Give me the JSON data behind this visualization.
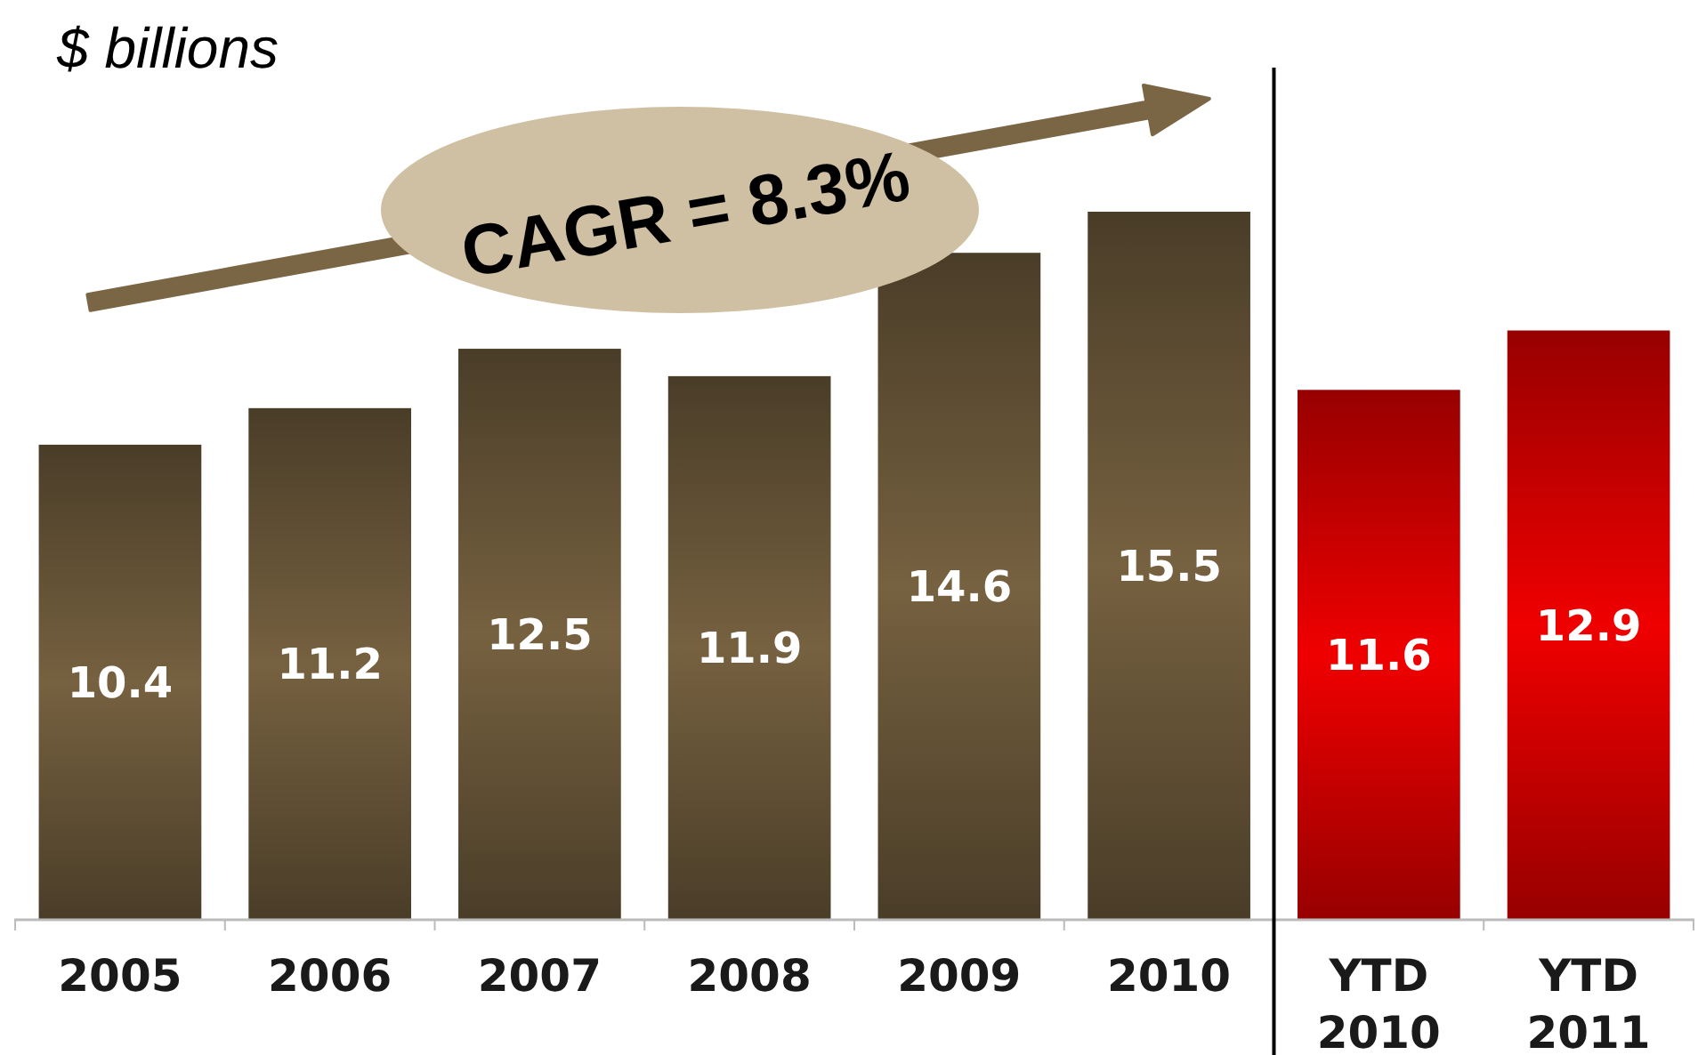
{
  "chart_data": {
    "type": "bar",
    "ylabel": "$ billions",
    "categories": [
      "2005",
      "2006",
      "2007",
      "2008",
      "2009",
      "2010",
      "YTD 2010",
      "YTD 2011"
    ],
    "values": [
      10.4,
      11.2,
      12.5,
      11.9,
      14.6,
      15.5,
      11.6,
      12.9
    ],
    "colors": [
      "#766140",
      "#766140",
      "#766140",
      "#766140",
      "#766140",
      "#766140",
      "#f00000",
      "#f00000"
    ],
    "data_labels": true,
    "annotations": [
      "CAGR = 8.3%"
    ]
  }
}
